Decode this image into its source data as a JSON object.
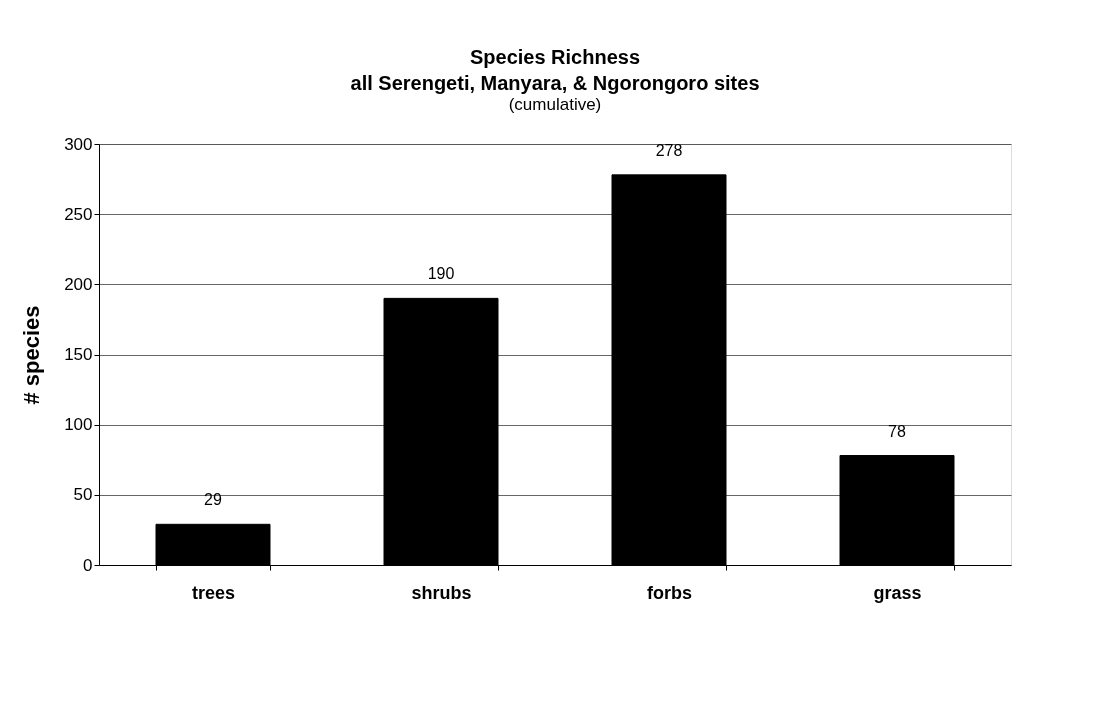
{
  "chart_data": {
    "type": "bar",
    "title": "Species Richness\nall Serengeti, Manyara, & Ngorongoro sites",
    "subtitle": "(cumulative)",
    "ylabel": "# species",
    "categories": [
      "trees",
      "shrubs",
      "forbs",
      "grass"
    ],
    "values": [
      29,
      190,
      278,
      78
    ],
    "color": "#000000",
    "ylim": [
      0,
      300
    ],
    "yticks": [
      0,
      50,
      100,
      150,
      200,
      250,
      300
    ],
    "grid": "y",
    "data_labels": true
  }
}
